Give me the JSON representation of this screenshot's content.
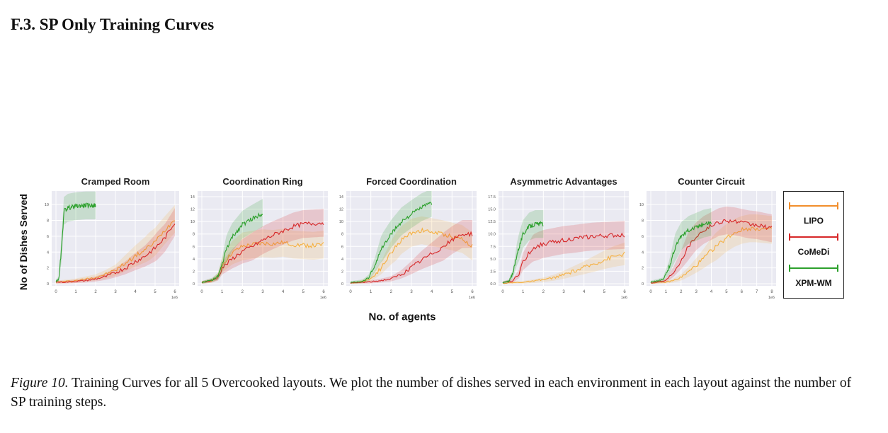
{
  "section_heading": "F.3. SP Only Training Curves",
  "shared_ylabel": "No of Dishes Served",
  "shared_xlabel": "No. of agents",
  "legend": [
    {
      "name": "LIPO",
      "color": "#f28e2b"
    },
    {
      "name": "CoMeDi",
      "color": "#d62728"
    },
    {
      "name": "XPM-WM",
      "color": "#2ca02c"
    }
  ],
  "caption": {
    "prefix": "Figure 10.",
    "text": "Training Curves for all 5 Overcooked layouts. We plot the number of dishes served in each environment in each layout against the number of SP training steps."
  },
  "chart_data": [
    {
      "type": "line",
      "title": "Cramped Room",
      "xlim": [
        0,
        6
      ],
      "ylim": [
        0,
        11
      ],
      "xticks": [
        "0",
        "1",
        "2",
        "3",
        "4",
        "5",
        "6"
      ],
      "x_offset_label": "1e6",
      "yticks": [
        "0",
        "2",
        "4",
        "6",
        "8",
        "10"
      ],
      "series": [
        {
          "name": "XPM-WM",
          "color": "#2ca02c",
          "x": [
            0,
            0.15,
            0.3,
            0.4,
            0.6,
            1,
            1.5,
            2
          ],
          "y": [
            0.3,
            0.6,
            5,
            9.2,
            9.6,
            9.8,
            9.9,
            9.9
          ]
        },
        {
          "name": "CoMeDi",
          "color": "#d62728",
          "x": [
            0,
            0.5,
            1,
            1.5,
            2,
            2.5,
            3,
            3.5,
            4,
            4.5,
            5,
            5.5,
            6
          ],
          "y": [
            0.2,
            0.2,
            0.3,
            0.4,
            0.6,
            0.9,
            1.4,
            2.0,
            2.8,
            3.5,
            4.5,
            5.8,
            7.8
          ]
        },
        {
          "name": "LIPO",
          "color": "#f5b041",
          "x": [
            0,
            0.5,
            1,
            1.5,
            2,
            2.5,
            3,
            3.5,
            4,
            4.5,
            5,
            5.5,
            6
          ],
          "y": [
            0.2,
            0.3,
            0.4,
            0.6,
            0.8,
            1.2,
            1.7,
            2.6,
            3.5,
            4.3,
            5.3,
            6.8,
            8.2
          ]
        }
      ]
    },
    {
      "type": "line",
      "title": "Coordination Ring",
      "xlim": [
        0,
        6
      ],
      "ylim": [
        0,
        14
      ],
      "xticks": [
        "0",
        "1",
        "2",
        "3",
        "4",
        "5",
        "6"
      ],
      "x_offset_label": "1e6",
      "yticks": [
        "0",
        "2",
        "4",
        "6",
        "8",
        "10",
        "12",
        "14"
      ],
      "series": [
        {
          "name": "XPM-WM",
          "color": "#2ca02c",
          "x": [
            0,
            0.5,
            0.8,
            1,
            1.2,
            1.5,
            2,
            2.5,
            3
          ],
          "y": [
            0.2,
            0.6,
            1.2,
            3,
            5.5,
            7.5,
            9.5,
            10.5,
            11.4
          ]
        },
        {
          "name": "CoMeDi",
          "color": "#d62728",
          "x": [
            0,
            0.5,
            0.8,
            1,
            1.5,
            2,
            2.5,
            3,
            3.5,
            4,
            4.5,
            5,
            5.5,
            6
          ],
          "y": [
            0.2,
            0.5,
            1,
            2.5,
            4,
            5.2,
            6,
            7,
            7.8,
            8.5,
            9.2,
            9.6,
            9.7,
            9.8
          ]
        },
        {
          "name": "LIPO",
          "color": "#f5b041",
          "x": [
            0,
            0.5,
            0.8,
            1,
            1.5,
            2,
            2.5,
            3,
            3.5,
            4,
            4.5,
            5,
            5.5,
            6
          ],
          "y": [
            0.2,
            0.5,
            1.2,
            3,
            5,
            6,
            6.3,
            6.5,
            6.4,
            6.6,
            6.3,
            6.2,
            6.1,
            6.3
          ]
        }
      ]
    },
    {
      "type": "line",
      "title": "Forced Coordination",
      "xlim": [
        0,
        6
      ],
      "ylim": [
        0,
        14
      ],
      "xticks": [
        "0",
        "1",
        "2",
        "3",
        "4",
        "5",
        "6"
      ],
      "x_offset_label": "1e6",
      "yticks": [
        "0",
        "2",
        "4",
        "6",
        "8",
        "10",
        "12",
        "14"
      ],
      "series": [
        {
          "name": "XPM-WM",
          "color": "#2ca02c",
          "x": [
            0,
            0.6,
            0.9,
            1.2,
            1.5,
            2,
            2.5,
            3,
            3.5,
            4
          ],
          "y": [
            0.2,
            0.4,
            1,
            3,
            5.5,
            8,
            10,
            11.2,
            12.3,
            13
          ]
        },
        {
          "name": "CoMeDi",
          "color": "#d62728",
          "x": [
            0,
            0.5,
            1,
            1.5,
            2,
            2.5,
            3,
            3.5,
            4,
            4.5,
            5,
            5.5,
            6
          ],
          "y": [
            0.1,
            0.2,
            0.3,
            0.5,
            0.8,
            1.5,
            2.6,
            3.8,
            4.8,
            5.8,
            7,
            8,
            8
          ]
        },
        {
          "name": "LIPO",
          "color": "#f5b041",
          "x": [
            0,
            0.5,
            1,
            1.5,
            2,
            2.5,
            3,
            3.5,
            4,
            4.5,
            5,
            5.5,
            6
          ],
          "y": [
            0.1,
            0.3,
            0.8,
            2.5,
            5,
            7,
            8.2,
            8.6,
            8.3,
            8.0,
            7.6,
            7.2,
            6.0
          ]
        }
      ]
    },
    {
      "type": "line",
      "title": "Asymmetric Advantages",
      "xlim": [
        0,
        6
      ],
      "ylim": [
        0,
        17.5
      ],
      "xticks": [
        "0",
        "1",
        "2",
        "3",
        "4",
        "5",
        "6"
      ],
      "x_offset_label": "1e6",
      "yticks": [
        "0.0",
        "2.5",
        "5.0",
        "7.5",
        "10.0",
        "12.5",
        "15.0",
        "17.5"
      ],
      "series": [
        {
          "name": "XPM-WM",
          "color": "#2ca02c",
          "x": [
            0,
            0.3,
            0.5,
            0.7,
            1,
            1.3,
            1.6,
            2
          ],
          "y": [
            0.2,
            0.5,
            2,
            6,
            10,
            11.5,
            12,
            12
          ]
        },
        {
          "name": "CoMeDi",
          "color": "#d62728",
          "x": [
            0,
            0.5,
            0.8,
            1,
            1.5,
            2,
            2.5,
            3,
            3.5,
            4,
            4.5,
            5,
            5.5,
            6
          ],
          "y": [
            0.2,
            0.6,
            2,
            4.5,
            7.2,
            8,
            8.4,
            8.8,
            9,
            9.3,
            9.5,
            9.6,
            9.7,
            9.8
          ]
        },
        {
          "name": "LIPO",
          "color": "#f5b041",
          "x": [
            0,
            0.5,
            1,
            1.5,
            2,
            2.5,
            3,
            3.5,
            4,
            4.5,
            5,
            5.5,
            6
          ],
          "y": [
            0.1,
            0.2,
            0.3,
            0.5,
            0.8,
            1.2,
            1.8,
            2.5,
            3.2,
            4,
            4.8,
            5.5,
            6
          ]
        }
      ]
    },
    {
      "type": "line",
      "title": "Counter Circuit",
      "xlim": [
        0,
        8
      ],
      "ylim": [
        0,
        11
      ],
      "xticks": [
        "0",
        "1",
        "2",
        "3",
        "4",
        "5",
        "6",
        "7",
        "8"
      ],
      "x_offset_label": "1e6",
      "yticks": [
        "0",
        "2",
        "4",
        "6",
        "8",
        "10"
      ],
      "series": [
        {
          "name": "XPM-WM",
          "color": "#2ca02c",
          "x": [
            0,
            0.8,
            1.2,
            1.6,
            2,
            2.5,
            3,
            3.5,
            4
          ],
          "y": [
            0.2,
            0.5,
            2,
            4.5,
            6,
            6.8,
            7.2,
            7.6,
            7.8
          ]
        },
        {
          "name": "CoMeDi",
          "color": "#d62728",
          "x": [
            0,
            1,
            1.5,
            2,
            2.5,
            3,
            3.5,
            4,
            4.5,
            5,
            5.5,
            6,
            6.5,
            7,
            7.5,
            8
          ],
          "y": [
            0.1,
            0.4,
            1.5,
            3,
            4.8,
            6,
            6.8,
            7.3,
            7.8,
            8,
            7.9,
            7.7,
            7.5,
            7.4,
            7.2,
            7.0
          ]
        },
        {
          "name": "LIPO",
          "color": "#f5b041",
          "x": [
            0,
            1,
            1.5,
            2,
            2.5,
            3,
            3.5,
            4,
            4.5,
            5,
            5.5,
            6,
            6.5,
            7,
            7.5,
            8
          ],
          "y": [
            0.1,
            0.2,
            0.4,
            0.8,
            1.5,
            2.3,
            3.2,
            4.2,
            5,
            5.8,
            6.4,
            6.8,
            7,
            7,
            6.9,
            6.8
          ]
        }
      ]
    }
  ]
}
